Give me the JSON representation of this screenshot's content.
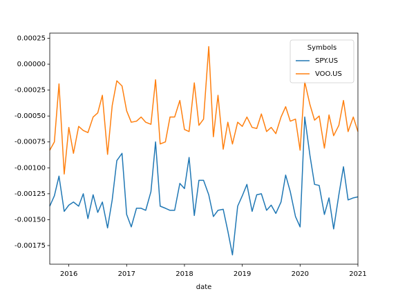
{
  "chart_data": {
    "type": "line",
    "xlabel": "date",
    "legend_title": "Symbols",
    "legend_loc": "upper right",
    "x": [
      2015.67,
      2015.75,
      2015.83,
      2015.92,
      2016.0,
      2016.08,
      2016.17,
      2016.25,
      2016.33,
      2016.42,
      2016.5,
      2016.58,
      2016.67,
      2016.75,
      2016.83,
      2016.92,
      2017.0,
      2017.08,
      2017.17,
      2017.25,
      2017.33,
      2017.42,
      2017.5,
      2017.58,
      2017.67,
      2017.75,
      2017.83,
      2017.92,
      2018.0,
      2018.08,
      2018.17,
      2018.25,
      2018.33,
      2018.42,
      2018.5,
      2018.58,
      2018.67,
      2018.75,
      2018.83,
      2018.92,
      2019.0,
      2019.08,
      2019.17,
      2019.25,
      2019.33,
      2019.42,
      2019.5,
      2019.58,
      2019.67,
      2019.75,
      2019.83,
      2019.92,
      2020.0,
      2020.08,
      2020.17,
      2020.25,
      2020.33,
      2020.42,
      2020.5,
      2020.58,
      2020.67,
      2020.75,
      2020.83,
      2020.92,
      2021.0
    ],
    "series": [
      {
        "name": "SPY.US",
        "color": "#1f77b4",
        "values": [
          -0.00137,
          -0.00127,
          -0.00108,
          -0.00142,
          -0.00136,
          -0.00133,
          -0.00137,
          -0.00125,
          -0.00149,
          -0.00126,
          -0.00143,
          -0.00133,
          -0.00158,
          -0.00131,
          -0.00093,
          -0.00086,
          -0.00145,
          -0.00157,
          -0.00139,
          -0.00139,
          -0.00141,
          -0.00123,
          -0.00075,
          -0.00137,
          -0.00139,
          -0.00141,
          -0.00141,
          -0.00115,
          -0.0012,
          -0.0009,
          -0.00146,
          -0.00112,
          -0.00112,
          -0.00126,
          -0.00147,
          -0.00141,
          -0.0014,
          -0.00161,
          -0.00184,
          -0.00137,
          -0.00127,
          -0.00116,
          -0.00142,
          -0.00126,
          -0.00125,
          -0.00141,
          -0.00136,
          -0.00144,
          -0.00133,
          -0.00107,
          -0.00123,
          -0.00147,
          -0.00157,
          -0.00051,
          -0.00088,
          -0.00116,
          -0.00117,
          -0.00145,
          -0.00129,
          -0.00159,
          -0.00126,
          -0.00099,
          -0.00131,
          -0.00129,
          -0.00128
        ]
      },
      {
        "name": "VOO.US",
        "color": "#ff7f0e",
        "values": [
          -0.00083,
          -0.00075,
          -0.00019,
          -0.00106,
          -0.00061,
          -0.00086,
          -0.0006,
          -0.00064,
          -0.00066,
          -0.00051,
          -0.00047,
          -0.0003,
          -0.00087,
          -0.0004,
          -0.00016,
          -0.00021,
          -0.00045,
          -0.00056,
          -0.00055,
          -0.00051,
          -0.00056,
          -0.00058,
          -0.00015,
          -0.00077,
          -0.00075,
          -0.00051,
          -0.00051,
          -0.00035,
          -0.00063,
          -0.00065,
          -0.00018,
          -0.00059,
          -0.00053,
          0.00017,
          -0.0007,
          -0.0003,
          -0.00082,
          -0.00056,
          -0.00077,
          -0.00056,
          -0.0006,
          -0.00051,
          -0.00061,
          -0.00062,
          -0.00048,
          -0.00065,
          -0.00061,
          -0.00067,
          -0.00051,
          -0.00041,
          -0.00055,
          -0.00053,
          -0.00083,
          -0.00017,
          -0.00039,
          -0.00054,
          -0.0005,
          -0.00081,
          -0.00049,
          -0.00069,
          -0.00059,
          -0.00035,
          -0.00065,
          -0.00051,
          -0.00065
        ]
      }
    ],
    "xlim": [
      2015.67,
      2021.0
    ],
    "xticks": [
      2016,
      2017,
      2018,
      2019,
      2020,
      2021
    ],
    "ylim": [
      -0.00193,
      0.0003
    ],
    "yticks": [
      0.00025,
      {
        "value": 0,
        "label": "0.00000"
      },
      -0.00025,
      {
        "value": -0.0005,
        "label": "-0.00050"
      },
      -0.00075,
      {
        "value": -0.001,
        "label": "-0.00100"
      },
      -0.00125,
      {
        "value": -0.0015,
        "label": "-0.00150"
      },
      -0.00175
    ]
  }
}
